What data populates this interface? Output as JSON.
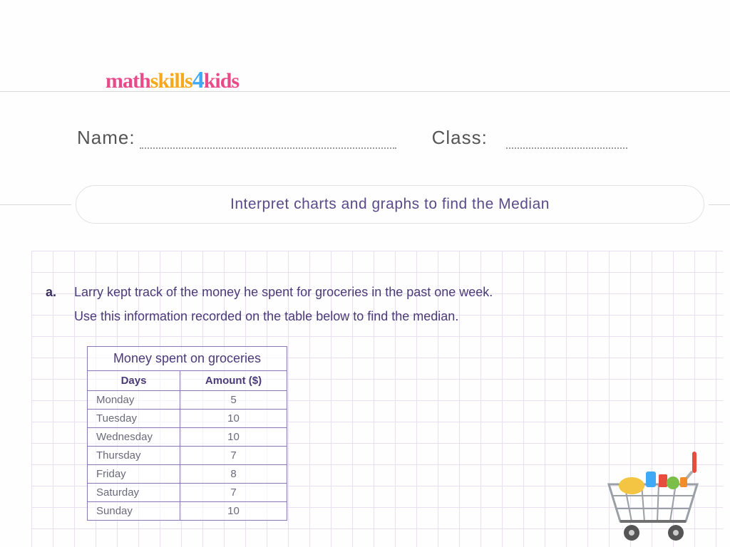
{
  "logo": {
    "p1": "math",
    "p2": "skills",
    "p3": "4",
    "p4": "kids"
  },
  "info": {
    "name_label": "Name:",
    "class_label": "Class:"
  },
  "title": "Interpret charts and graphs to find the Median",
  "question": {
    "letter": "a.",
    "line1": "Larry kept track of the money he spent for groceries in the past one week.",
    "line2": "Use this information recorded on the table below to find the median."
  },
  "table": {
    "title": "Money spent on groceries",
    "col1": "Days",
    "col2": "Amount ($)",
    "rows": [
      {
        "day": "Monday",
        "amt": "5"
      },
      {
        "day": "Tuesday",
        "amt": "10"
      },
      {
        "day": "Wednesday",
        "amt": "10"
      },
      {
        "day": "Thursday",
        "amt": "7"
      },
      {
        "day": "Friday",
        "amt": "8"
      },
      {
        "day": "Saturday",
        "amt": "7"
      },
      {
        "day": "Sunday",
        "amt": "10"
      }
    ]
  },
  "colors": {
    "accent": "#5b4a8a",
    "grid": "#e8dff0",
    "table_border": "#8a75b5"
  }
}
